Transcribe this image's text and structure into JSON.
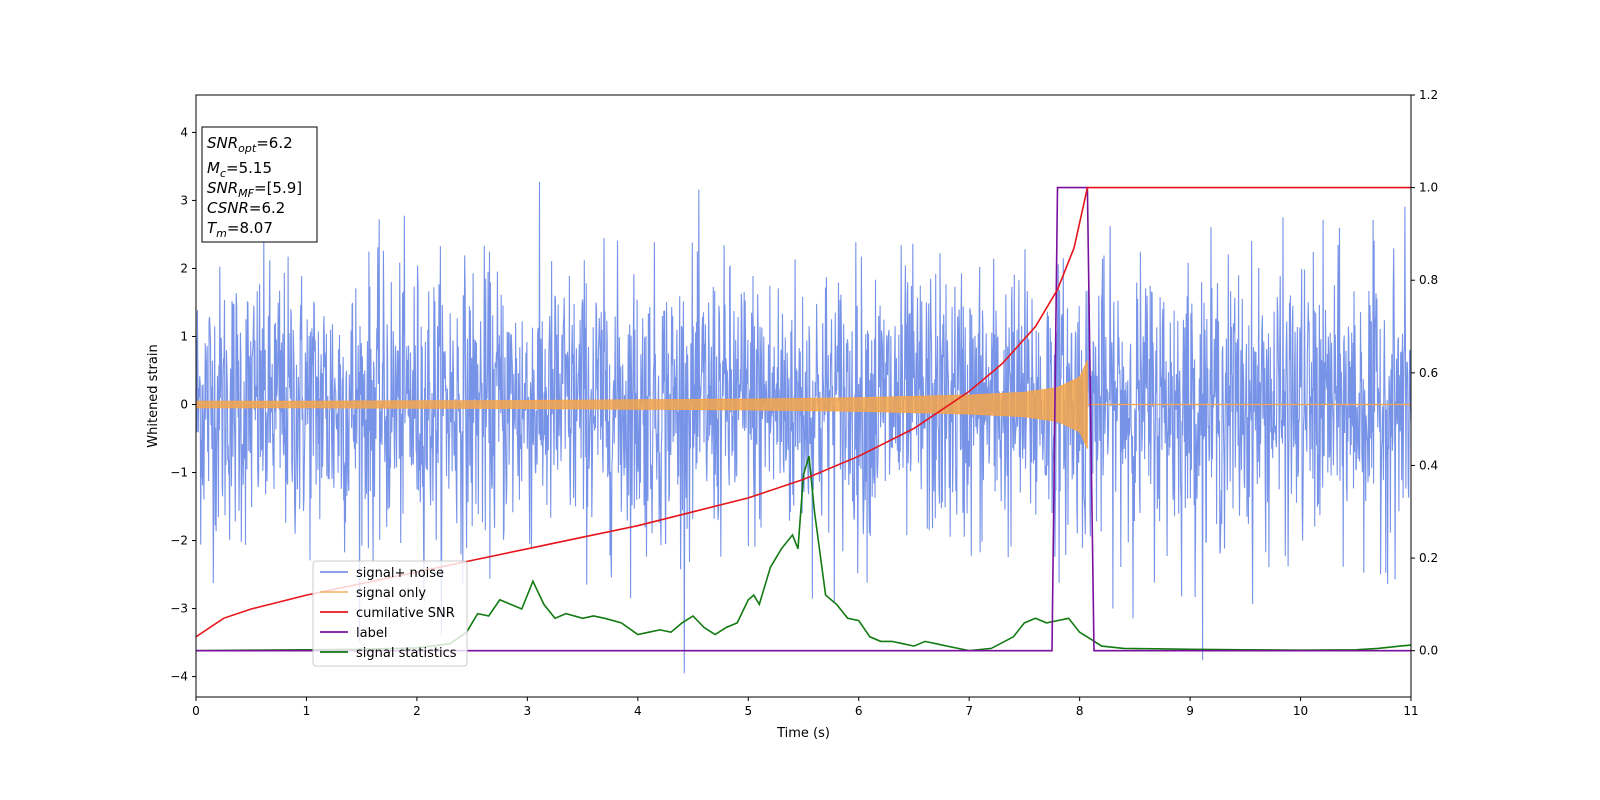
{
  "chart_data": {
    "type": "line",
    "title": "",
    "xlabel": "Time (s)",
    "ylabel": "Whitened strain",
    "xlim": [
      0,
      11
    ],
    "ylim": [
      -4.3,
      4.55
    ],
    "y2lim": [
      -0.1,
      1.2
    ],
    "xticks": [
      "0",
      "1",
      "2",
      "3",
      "4",
      "5",
      "6",
      "7",
      "8",
      "9",
      "10",
      "11"
    ],
    "yticks": [
      "−4",
      "−3",
      "−2",
      "−1",
      "0",
      "1",
      "2",
      "3",
      "4"
    ],
    "y2ticks": [
      "0.0",
      "0.2",
      "0.4",
      "0.6",
      "0.8",
      "1.0",
      "1.2"
    ],
    "grid": false,
    "legend_position": "lower-left",
    "legend": [
      "signal+ noise",
      "signal only",
      "cumilative SNR",
      "label",
      "signal statistics"
    ],
    "info_box": {
      "lines": [
        {
          "base": "SNR",
          "sub": "opt",
          "value": "=6.2"
        },
        {
          "base": "M",
          "sub": "c",
          "value": "=5.15"
        },
        {
          "base": "SNR",
          "sub": "MF",
          "value": "=[5.9]"
        },
        {
          "base": "CSNR",
          "sub": "",
          "value": "=6.2"
        },
        {
          "base": "T",
          "sub": "m",
          "value": "=8.07"
        }
      ]
    },
    "series": [
      {
        "name": "signal+ noise",
        "color": "#4a6fe0",
        "axis": "left",
        "description": "whitened noisy strain, approx. Gaussian with sigma ~1, peaks to about +4.2 / -3.9",
        "noise_sigma": 1.0,
        "x_range": [
          0,
          11
        ]
      },
      {
        "name": "signal only",
        "color": "#f5a44a",
        "axis": "left",
        "envelope_x": [
          0,
          1,
          2,
          3,
          4,
          5,
          6,
          7,
          7.5,
          7.8,
          8.0,
          8.07,
          8.1,
          11
        ],
        "envelope_y": [
          0.05,
          0.05,
          0.055,
          0.06,
          0.07,
          0.08,
          0.1,
          0.14,
          0.18,
          0.25,
          0.4,
          0.65,
          0.0,
          0.0
        ]
      },
      {
        "name": "cumilative SNR",
        "color": "#e8141b",
        "axis": "right",
        "x": [
          0,
          0.25,
          0.5,
          1.0,
          1.5,
          2.0,
          2.5,
          3.0,
          3.5,
          4.0,
          4.5,
          5.0,
          5.5,
          6.0,
          6.5,
          7.0,
          7.3,
          7.6,
          7.8,
          7.95,
          8.07,
          8.1,
          11
        ],
        "y": [
          0.03,
          0.07,
          0.09,
          0.12,
          0.145,
          0.17,
          0.195,
          0.22,
          0.245,
          0.27,
          0.3,
          0.33,
          0.37,
          0.42,
          0.48,
          0.56,
          0.62,
          0.7,
          0.78,
          0.87,
          1.0,
          1.0,
          1.0
        ]
      },
      {
        "name": "label",
        "color": "#7b0f9e",
        "axis": "right",
        "x": [
          0,
          7.75,
          7.8,
          8.07,
          8.13,
          11
        ],
        "y": [
          0.0,
          0.0,
          1.0,
          1.0,
          0.0,
          0.0
        ]
      },
      {
        "name": "signal statistics",
        "color": "#117a11",
        "axis": "right",
        "x": [
          0,
          0.5,
          1.0,
          1.5,
          2.0,
          2.3,
          2.45,
          2.55,
          2.65,
          2.75,
          2.85,
          2.95,
          3.05,
          3.15,
          3.25,
          3.35,
          3.5,
          3.6,
          3.7,
          3.85,
          4.0,
          4.1,
          4.2,
          4.3,
          4.4,
          4.5,
          4.6,
          4.7,
          4.8,
          4.9,
          5.0,
          5.05,
          5.1,
          5.2,
          5.3,
          5.4,
          5.45,
          5.5,
          5.55,
          5.6,
          5.7,
          5.8,
          5.9,
          6.0,
          6.1,
          6.2,
          6.3,
          6.4,
          6.5,
          6.6,
          6.7,
          6.8,
          6.9,
          7.0,
          7.2,
          7.4,
          7.5,
          7.6,
          7.7,
          7.8,
          7.9,
          8.0,
          8.1,
          8.2,
          8.4,
          8.7,
          9.0,
          9.5,
          10.0,
          10.5,
          10.7,
          10.9,
          11.0
        ],
        "y": [
          0.0,
          0.001,
          0.002,
          0.003,
          0.006,
          0.015,
          0.04,
          0.08,
          0.075,
          0.11,
          0.1,
          0.09,
          0.15,
          0.1,
          0.07,
          0.08,
          0.07,
          0.075,
          0.07,
          0.06,
          0.035,
          0.04,
          0.045,
          0.04,
          0.06,
          0.075,
          0.05,
          0.035,
          0.05,
          0.06,
          0.11,
          0.12,
          0.1,
          0.18,
          0.22,
          0.25,
          0.22,
          0.38,
          0.42,
          0.3,
          0.12,
          0.1,
          0.07,
          0.065,
          0.03,
          0.02,
          0.02,
          0.015,
          0.01,
          0.02,
          0.015,
          0.01,
          0.005,
          0.0,
          0.005,
          0.03,
          0.06,
          0.07,
          0.06,
          0.065,
          0.07,
          0.04,
          0.025,
          0.01,
          0.005,
          0.004,
          0.003,
          0.002,
          0.001,
          0.002,
          0.005,
          0.01,
          0.012
        ]
      }
    ]
  }
}
